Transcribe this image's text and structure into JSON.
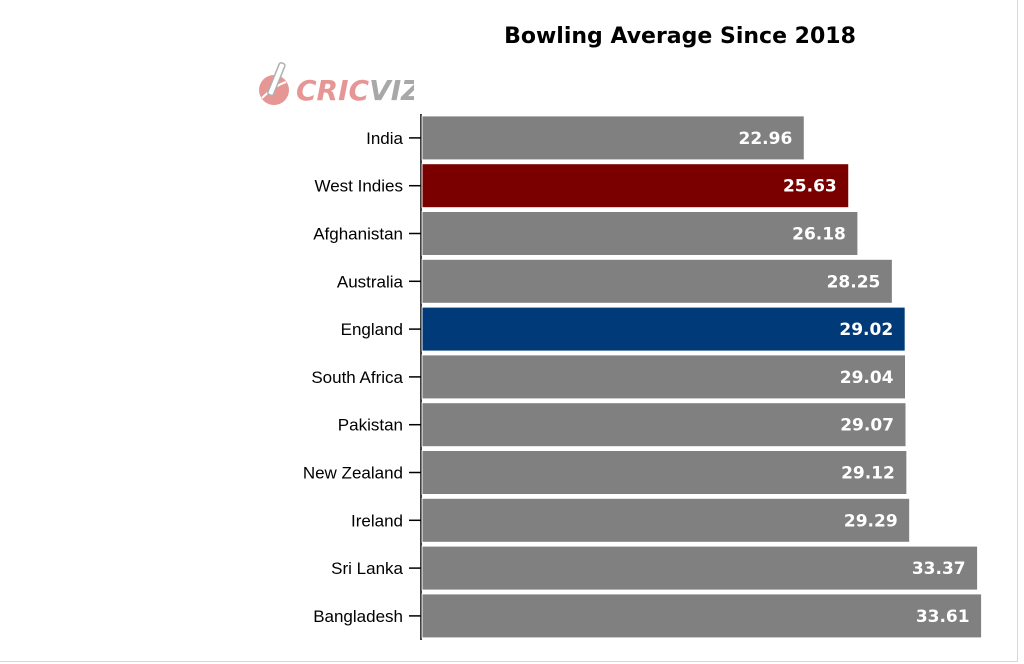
{
  "logo": {
    "brand_a": "CRIC",
    "brand_b": "VIZ",
    "icon": "cricket-ball-bat-icon"
  },
  "colors": {
    "default": "#808080",
    "highlight_red": "#7a0000",
    "highlight_blue": "#003a78",
    "bar_border": "#ffffff"
  },
  "chart_data": {
    "type": "bar",
    "orientation": "horizontal",
    "title": "Bowling Average Since 2018",
    "xlabel": "",
    "ylabel": "",
    "grid": false,
    "xlim": [
      0,
      35
    ],
    "categories": [
      "India",
      "West Indies",
      "Afghanistan",
      "Australia",
      "England",
      "South Africa",
      "Pakistan",
      "New Zealand",
      "Ireland",
      "Sri Lanka",
      "Bangladesh"
    ],
    "values": [
      22.96,
      25.63,
      26.18,
      28.25,
      29.02,
      29.04,
      29.07,
      29.12,
      29.29,
      33.37,
      33.61
    ],
    "labels": [
      "22.96",
      "25.63",
      "26.18",
      "28.25",
      "29.02",
      "29.04",
      "29.07",
      "29.12",
      "29.29",
      "33.37",
      "33.61"
    ],
    "bar_colors": [
      "#808080",
      "#7a0000",
      "#808080",
      "#808080",
      "#003a78",
      "#808080",
      "#808080",
      "#808080",
      "#808080",
      "#808080",
      "#808080"
    ]
  }
}
